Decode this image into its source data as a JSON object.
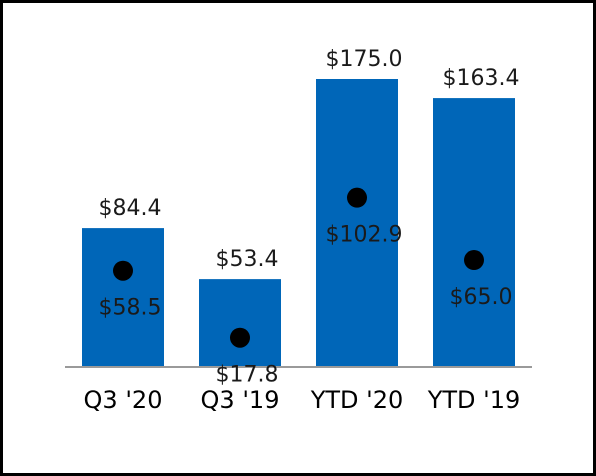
{
  "chart_data": {
    "type": "bar",
    "categories": [
      "Q3 '20",
      "Q3 '19",
      "YTD '20",
      "YTD '19"
    ],
    "series": [
      {
        "values": [
          84.4,
          53.4,
          175.0,
          163.4
        ],
        "labels": [
          "$84.4",
          "$53.4",
          "$175.0",
          "$163.4"
        ],
        "color": "#0066b8",
        "marker": "bar"
      },
      {
        "values": [
          58.5,
          17.8,
          102.9,
          65.0
        ],
        "labels": [
          "$58.5",
          "$17.8",
          "$102.9",
          "$65.0"
        ],
        "color": "#000000",
        "marker": "dot"
      }
    ],
    "title": "",
    "xlabel": "",
    "ylabel": "",
    "ylim": [
      0,
      175
    ],
    "grid": false,
    "legend": "none"
  }
}
